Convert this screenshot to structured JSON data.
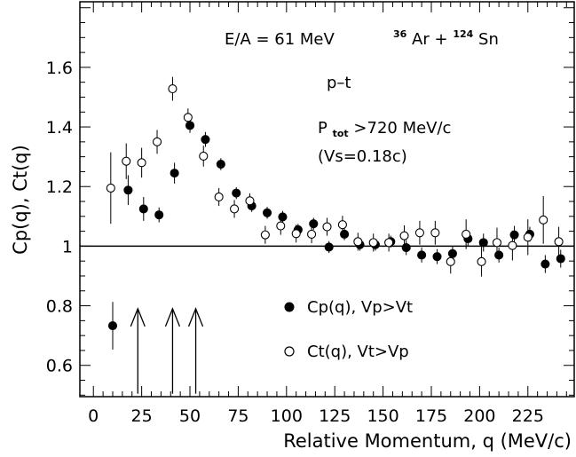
{
  "chart_data": {
    "type": "scatter",
    "xlabel": "Relative Momentum, q (MeV/c)",
    "ylabel": "Cp(q), Ct(q)",
    "xlim": [
      -7,
      249
    ],
    "ylim": [
      0.495,
      1.82
    ],
    "xticks": [
      0,
      25,
      50,
      75,
      100,
      125,
      150,
      175,
      200,
      225
    ],
    "yticks": [
      0.6,
      0.8,
      1,
      1.2,
      1.4,
      1.6
    ],
    "ytick_labels": [
      "0.6",
      "0.8",
      "1",
      "1.2",
      "1.4",
      "1.6"
    ],
    "reference_line_y": 1.0,
    "annotations": {
      "energy": "E/A = 61 MeV",
      "reaction": {
        "mass_a": "36",
        "elem_a": "Ar",
        "plus": "+",
        "mass_b": "124",
        "elem_b": "Sn"
      },
      "pair": "p–t",
      "ptot": {
        "symbol": "P",
        "subscript": "tot",
        "condition": ">720 MeV/c"
      },
      "vs": "(Vs=0.18c)"
    },
    "arrows_x": [
      23,
      41,
      53
    ],
    "legend": {
      "position": "lower-right"
    },
    "series": [
      {
        "name": "Cp(q), Vp>Vt",
        "marker": "filled-circle",
        "points": [
          {
            "x": 10,
            "y": 0.733,
            "err": 0.08
          },
          {
            "x": 18,
            "y": 1.188,
            "err": 0.05
          },
          {
            "x": 26,
            "y": 1.125,
            "err": 0.04
          },
          {
            "x": 34,
            "y": 1.105,
            "err": 0.025
          },
          {
            "x": 42,
            "y": 1.245,
            "err": 0.035
          },
          {
            "x": 50,
            "y": 1.405,
            "err": 0.025
          },
          {
            "x": 58,
            "y": 1.358,
            "err": 0.025
          },
          {
            "x": 66,
            "y": 1.275,
            "err": 0.02
          },
          {
            "x": 74,
            "y": 1.178,
            "err": 0.02
          },
          {
            "x": 82,
            "y": 1.135,
            "err": 0.02
          },
          {
            "x": 90,
            "y": 1.112,
            "err": 0.02
          },
          {
            "x": 98,
            "y": 1.098,
            "err": 0.02
          },
          {
            "x": 106,
            "y": 1.055,
            "err": 0.02
          },
          {
            "x": 114,
            "y": 1.075,
            "err": 0.02
          },
          {
            "x": 122,
            "y": 0.997,
            "err": 0.02
          },
          {
            "x": 130,
            "y": 1.04,
            "err": 0.02
          },
          {
            "x": 138,
            "y": 1.005,
            "err": 0.02
          },
          {
            "x": 146,
            "y": 1.005,
            "err": 0.02
          },
          {
            "x": 154,
            "y": 1.015,
            "err": 0.02
          },
          {
            "x": 162,
            "y": 0.995,
            "err": 0.025
          },
          {
            "x": 170,
            "y": 0.97,
            "err": 0.025
          },
          {
            "x": 178,
            "y": 0.965,
            "err": 0.025
          },
          {
            "x": 186,
            "y": 0.975,
            "err": 0.025
          },
          {
            "x": 194,
            "y": 1.025,
            "err": 0.025
          },
          {
            "x": 202,
            "y": 1.012,
            "err": 0.03
          },
          {
            "x": 210,
            "y": 0.97,
            "err": 0.025
          },
          {
            "x": 218,
            "y": 1.038,
            "err": 0.03
          },
          {
            "x": 226,
            "y": 1.04,
            "err": 0.025
          },
          {
            "x": 234,
            "y": 0.94,
            "err": 0.03
          },
          {
            "x": 242,
            "y": 0.958,
            "err": 0.03
          }
        ]
      },
      {
        "name": "Ct(q), Vt>Vp",
        "marker": "open-circle",
        "points": [
          {
            "x": 9,
            "y": 1.195,
            "err": 0.12
          },
          {
            "x": 17,
            "y": 1.285,
            "err": 0.06
          },
          {
            "x": 25,
            "y": 1.28,
            "err": 0.05
          },
          {
            "x": 33,
            "y": 1.35,
            "err": 0.04
          },
          {
            "x": 41,
            "y": 1.528,
            "err": 0.04
          },
          {
            "x": 49,
            "y": 1.432,
            "err": 0.03
          },
          {
            "x": 57,
            "y": 1.302,
            "err": 0.035
          },
          {
            "x": 65,
            "y": 1.165,
            "err": 0.03
          },
          {
            "x": 73,
            "y": 1.125,
            "err": 0.03
          },
          {
            "x": 81,
            "y": 1.152,
            "err": 0.025
          },
          {
            "x": 89,
            "y": 1.038,
            "err": 0.03
          },
          {
            "x": 97,
            "y": 1.068,
            "err": 0.03
          },
          {
            "x": 105,
            "y": 1.042,
            "err": 0.03
          },
          {
            "x": 113,
            "y": 1.04,
            "err": 0.03
          },
          {
            "x": 121,
            "y": 1.065,
            "err": 0.03
          },
          {
            "x": 129,
            "y": 1.072,
            "err": 0.03
          },
          {
            "x": 137,
            "y": 1.015,
            "err": 0.03
          },
          {
            "x": 145,
            "y": 1.012,
            "err": 0.03
          },
          {
            "x": 153,
            "y": 1.012,
            "err": 0.03
          },
          {
            "x": 161,
            "y": 1.035,
            "err": 0.035
          },
          {
            "x": 169,
            "y": 1.045,
            "err": 0.04
          },
          {
            "x": 177,
            "y": 1.045,
            "err": 0.04
          },
          {
            "x": 185,
            "y": 0.948,
            "err": 0.04
          },
          {
            "x": 193,
            "y": 1.04,
            "err": 0.05
          },
          {
            "x": 201,
            "y": 0.948,
            "err": 0.05
          },
          {
            "x": 209,
            "y": 1.012,
            "err": 0.05
          },
          {
            "x": 217,
            "y": 1.002,
            "err": 0.05
          },
          {
            "x": 225,
            "y": 1.03,
            "err": 0.06
          },
          {
            "x": 233,
            "y": 1.088,
            "err": 0.08
          },
          {
            "x": 241,
            "y": 1.015,
            "err": 0.05
          }
        ]
      }
    ]
  }
}
